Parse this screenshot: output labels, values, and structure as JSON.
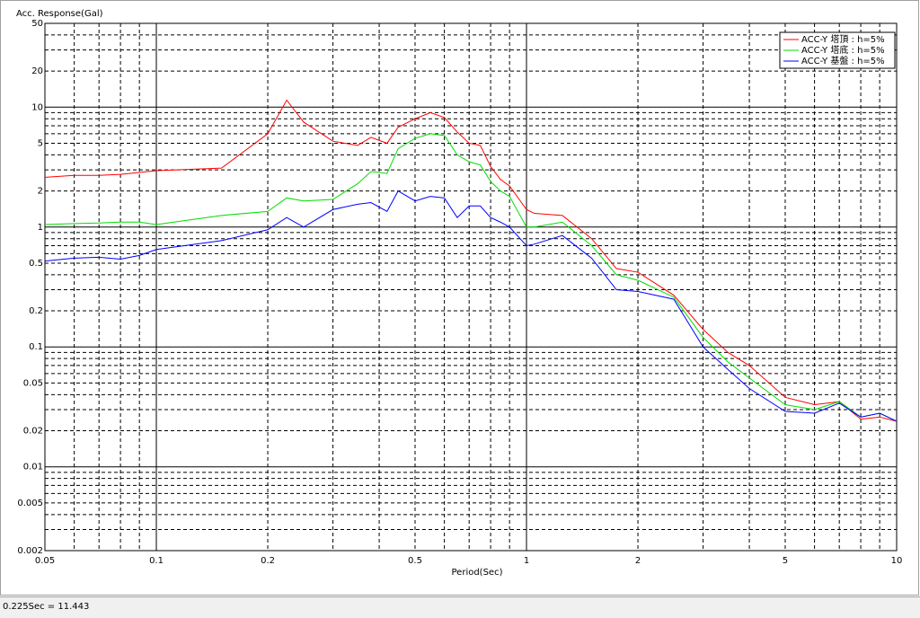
{
  "chart_data": {
    "type": "line",
    "log_x": true,
    "log_y": true,
    "grid": true,
    "legend": "upper right",
    "ylabel": "Acc. Response(Gal)",
    "xlabel": "Period(Sec)",
    "xlim": [
      0.05,
      10
    ],
    "ylim": [
      0.002,
      50
    ],
    "xticks": [
      0.05,
      0.1,
      0.2,
      0.5,
      1,
      2,
      5,
      10
    ],
    "xminor_ticks": [
      0.06,
      0.07,
      0.08,
      0.09,
      0.3,
      0.4,
      0.6,
      0.7,
      0.8,
      0.9,
      3,
      4,
      6,
      7,
      8,
      9
    ],
    "yticks": [
      0.002,
      0.005,
      0.01,
      0.02,
      0.05,
      0.1,
      0.2,
      0.5,
      1,
      2,
      5,
      10,
      20,
      50
    ],
    "yminor_ticks": [
      0.003,
      0.004,
      0.006,
      0.007,
      0.008,
      0.009,
      0.03,
      0.04,
      0.06,
      0.07,
      0.08,
      0.09,
      0.3,
      0.4,
      0.6,
      0.7,
      0.8,
      0.9,
      3,
      4,
      6,
      7,
      8,
      9,
      30,
      40
    ],
    "x": [
      0.05,
      0.06,
      0.07,
      0.08,
      0.09,
      0.1,
      0.15,
      0.2,
      0.225,
      0.25,
      0.3,
      0.35,
      0.38,
      0.42,
      0.45,
      0.5,
      0.55,
      0.6,
      0.65,
      0.7,
      0.75,
      0.8,
      0.85,
      0.9,
      1.0,
      1.05,
      1.25,
      1.5,
      1.75,
      2,
      2.5,
      3,
      3.5,
      4,
      5,
      6,
      7,
      8,
      9,
      10
    ],
    "series": [
      {
        "name": "ACC-Y 塔頂 : h=5%",
        "color": "#ff0000",
        "values": [
          2.6,
          2.7,
          2.7,
          2.75,
          2.85,
          2.95,
          3.1,
          6.0,
          11.443,
          7.5,
          5.2,
          4.8,
          5.6,
          5.0,
          6.8,
          8.0,
          9.0,
          8.2,
          6.2,
          5.0,
          4.8,
          3.2,
          2.5,
          2.2,
          1.4,
          1.3,
          1.25,
          0.8,
          0.45,
          0.42,
          0.27,
          0.14,
          0.09,
          0.07,
          0.038,
          0.033,
          0.035,
          0.025,
          0.026,
          0.024
        ]
      },
      {
        "name": "ACC-Y 塔底 : h=5%",
        "color": "#00dd00",
        "values": [
          1.05,
          1.07,
          1.08,
          1.1,
          1.1,
          1.05,
          1.25,
          1.35,
          1.75,
          1.65,
          1.7,
          2.3,
          2.9,
          2.8,
          4.5,
          5.5,
          6.0,
          5.8,
          4.0,
          3.5,
          3.3,
          2.4,
          2.0,
          1.8,
          1.0,
          1.0,
          1.1,
          0.7,
          0.4,
          0.36,
          0.26,
          0.12,
          0.075,
          0.055,
          0.033,
          0.03,
          0.035,
          0.026,
          0.028,
          0.024
        ]
      },
      {
        "name": "ACC-Y 基盤 : h=5%",
        "color": "#0000ff",
        "values": [
          0.52,
          0.55,
          0.56,
          0.54,
          0.58,
          0.65,
          0.77,
          0.95,
          1.2,
          1.0,
          1.4,
          1.55,
          1.6,
          1.35,
          2.0,
          1.65,
          1.8,
          1.75,
          1.2,
          1.5,
          1.5,
          1.2,
          1.1,
          1.0,
          0.7,
          0.72,
          0.85,
          0.55,
          0.3,
          0.29,
          0.25,
          0.1,
          0.065,
          0.045,
          0.029,
          0.028,
          0.034,
          0.026,
          0.028,
          0.024
        ]
      }
    ]
  },
  "status_bar": "0.225Sec = 11.443"
}
